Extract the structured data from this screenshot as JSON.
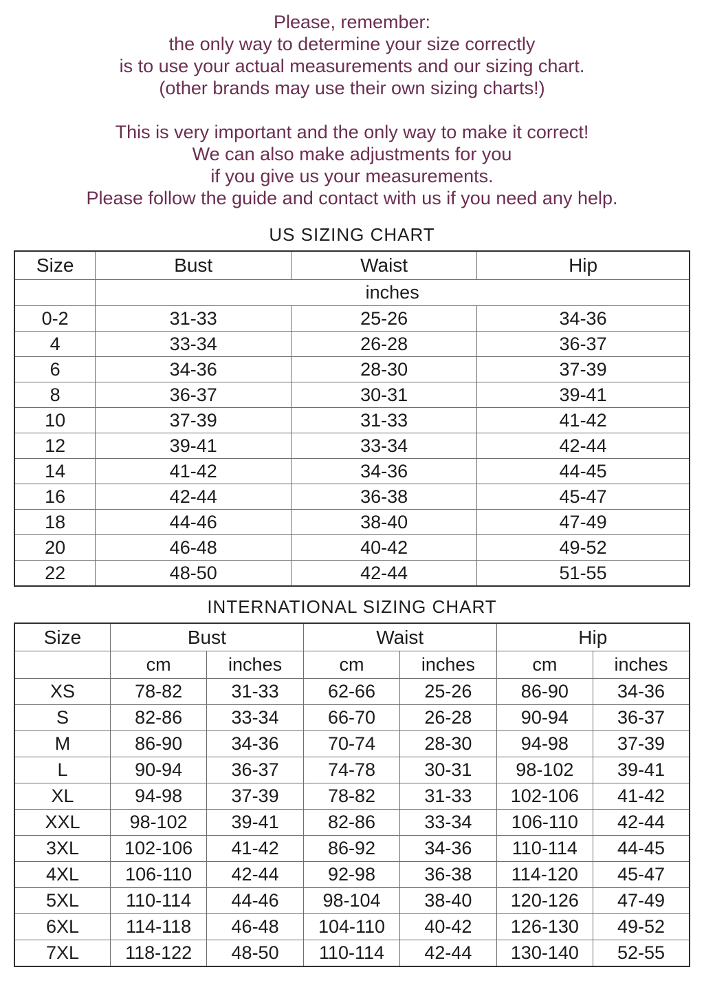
{
  "intro": {
    "text_color": "#6b2e51",
    "block1": [
      "Please, remember:",
      "the only way to determine your size correctly",
      "is to use your actual measurements and our sizing chart.",
      "(other brands may use their own sizing charts!)"
    ],
    "block2": [
      "This is very important and the only way to make it correct!",
      "We can also make adjustments for you",
      "if you give us your measurements.",
      "Please follow the guide and contact with us if you need any help."
    ]
  },
  "us_chart": {
    "title": "US SIZING CHART",
    "columns": [
      "Size",
      "Bust",
      "Waist",
      "Hip"
    ],
    "unit_label": "inches",
    "rows": [
      [
        "0-2",
        "31-33",
        "25-26",
        "34-36"
      ],
      [
        "4",
        "33-34",
        "26-28",
        "36-37"
      ],
      [
        "6",
        "34-36",
        "28-30",
        "37-39"
      ],
      [
        "8",
        "36-37",
        "30-31",
        "39-41"
      ],
      [
        "10",
        "37-39",
        "31-33",
        "41-42"
      ],
      [
        "12",
        "39-41",
        "33-34",
        "42-44"
      ],
      [
        "14",
        "41-42",
        "34-36",
        "44-45"
      ],
      [
        "16",
        "42-44",
        "36-38",
        "45-47"
      ],
      [
        "18",
        "44-46",
        "38-40",
        "47-49"
      ],
      [
        "20",
        "46-48",
        "40-42",
        "49-52"
      ],
      [
        "22",
        "48-50",
        "42-44",
        "51-55"
      ]
    ]
  },
  "intl_chart": {
    "title": "INTERNATIONAL SIZING CHART",
    "columns": [
      "Size",
      "Bust",
      "Waist",
      "Hip"
    ],
    "unit_labels": [
      "cm",
      "inches",
      "cm",
      "inches",
      "cm",
      "inches"
    ],
    "rows": [
      [
        "XS",
        "78-82",
        "31-33",
        "62-66",
        "25-26",
        "86-90",
        "34-36"
      ],
      [
        "S",
        "82-86",
        "33-34",
        "66-70",
        "26-28",
        "90-94",
        "36-37"
      ],
      [
        "M",
        "86-90",
        "34-36",
        "70-74",
        "28-30",
        "94-98",
        "37-39"
      ],
      [
        "L",
        "90-94",
        "36-37",
        "74-78",
        "30-31",
        "98-102",
        "39-41"
      ],
      [
        "XL",
        "94-98",
        "37-39",
        "78-82",
        "31-33",
        "102-106",
        "41-42"
      ],
      [
        "XXL",
        "98-102",
        "39-41",
        "82-86",
        "33-34",
        "106-110",
        "42-44"
      ],
      [
        "3XL",
        "102-106",
        "41-42",
        "86-92",
        "34-36",
        "110-114",
        "44-45"
      ],
      [
        "4XL",
        "106-110",
        "42-44",
        "92-98",
        "36-38",
        "114-120",
        "45-47"
      ],
      [
        "5XL",
        "110-114",
        "44-46",
        "98-104",
        "38-40",
        "120-126",
        "47-49"
      ],
      [
        "6XL",
        "114-118",
        "46-48",
        "104-110",
        "40-42",
        "126-130",
        "49-52"
      ],
      [
        "7XL",
        "118-122",
        "48-50",
        "110-114",
        "42-44",
        "130-140",
        "52-55"
      ]
    ]
  }
}
